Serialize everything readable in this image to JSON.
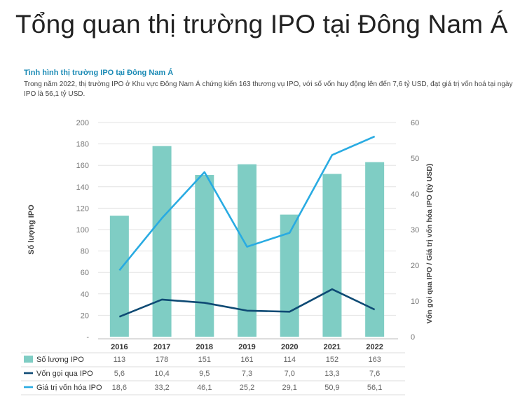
{
  "page": {
    "title": "Tổng quan thị trường IPO tại Đông Nam Á",
    "subtitle": "Tình hình thị trường IPO tại Đông Nam Á",
    "description": "Trong năm 2022, thị trường IPO ở Khu vực Đông Nam Á chứng kiến 163 thương vụ IPO, với số vốn huy động lên đến 7,6 tỷ USD, đạt giá trị vốn hoá tại ngày IPO là 56,1 tỷ USD."
  },
  "chart_data": {
    "type": "bar",
    "categories": [
      "2016",
      "2017",
      "2018",
      "2019",
      "2020",
      "2021",
      "2022"
    ],
    "ylabel": "Số lượng IPO",
    "y2label": "Vốn gọi qua IPO / Giá trị vốn hóa IPO (tỷ USD)",
    "ylim": [
      0,
      200
    ],
    "y2lim": [
      0,
      60
    ],
    "y_ticks": [
      "-",
      "20",
      "40",
      "60",
      "80",
      "100",
      "120",
      "140",
      "160",
      "180",
      "200"
    ],
    "y2_ticks": [
      "0",
      "10",
      "20",
      "30",
      "40",
      "50",
      "60"
    ],
    "series": [
      {
        "name": "Số lượng IPO",
        "kind": "bar",
        "axis": "left",
        "color": "#7fcdc4",
        "values": [
          113,
          178,
          151,
          161,
          114,
          152,
          163
        ],
        "labels": [
          "113",
          "178",
          "151",
          "161",
          "114",
          "152",
          "163"
        ]
      },
      {
        "name": "Vốn gọi qua IPO",
        "kind": "line",
        "axis": "right",
        "color": "#0e4a74",
        "values": [
          5.6,
          10.4,
          9.5,
          7.3,
          7.0,
          13.3,
          7.6
        ],
        "labels": [
          "5,6",
          "10,4",
          "9,5",
          "7,3",
          "7,0",
          "13,3",
          "7,6"
        ]
      },
      {
        "name": "Giá trị vốn hóa IPO",
        "kind": "line",
        "axis": "right",
        "color": "#29abe2",
        "values": [
          18.6,
          33.2,
          46.1,
          25.2,
          29.1,
          50.9,
          56.1
        ],
        "labels": [
          "18,6",
          "33,2",
          "46,1",
          "25,2",
          "29,1",
          "50,9",
          "56,1"
        ]
      }
    ],
    "grid": true,
    "legend": "bottom-table"
  }
}
